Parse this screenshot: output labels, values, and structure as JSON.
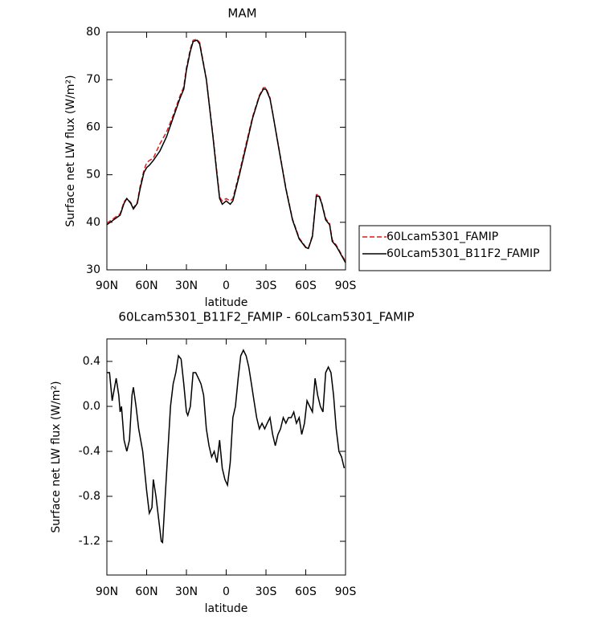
{
  "chart_data": [
    {
      "type": "line",
      "title": "MAM",
      "x_label": "latitude",
      "y_label": "Surface net LW flux (W/m²)",
      "x": [
        90,
        85,
        80,
        77,
        75,
        72,
        70,
        67,
        65,
        62,
        60,
        58,
        55,
        50,
        45,
        40,
        35,
        32,
        30,
        27,
        25,
        22,
        20,
        15,
        10,
        7,
        5,
        3,
        0,
        -3,
        -5,
        -10,
        -15,
        -20,
        -25,
        -28,
        -30,
        -33,
        -35,
        -40,
        -45,
        -50,
        -55,
        -60,
        -62,
        -65,
        -68,
        -70,
        -72,
        -75,
        -78,
        -80,
        -83,
        -85,
        -88,
        -90
      ],
      "series": [
        {
          "name": "60Lcam5301_FAMIP",
          "color": "#e41a1c",
          "line_style": "dashed",
          "values": [
            39.8,
            40.8,
            41.8,
            44.3,
            45,
            44.2,
            43,
            44.2,
            47.5,
            51,
            52.5,
            53,
            53.5,
            56.5,
            59,
            62.5,
            66.5,
            68.5,
            72.5,
            76.5,
            78.3,
            78.5,
            77.8,
            70.2,
            58.3,
            50.5,
            45.3,
            44.5,
            45,
            44.5,
            45,
            50.5,
            56.5,
            62.3,
            66.7,
            68.3,
            68.3,
            66.2,
            63,
            55.2,
            47.2,
            40.7,
            36.7,
            34.8,
            34.6,
            37.2,
            45.8,
            45.8,
            44.2,
            40.8,
            39.7,
            36.3,
            35.2,
            34.2,
            32.7,
            31.8
          ]
        },
        {
          "name": "60Lcam5301_B11F2_FAMIP",
          "color": "#000000",
          "line_style": "solid",
          "values": [
            39.5,
            40.5,
            41.5,
            44,
            45,
            44,
            42.8,
            44,
            47,
            50.5,
            51.5,
            52,
            53,
            55,
            58,
            62,
            66,
            68,
            72,
            76,
            78,
            78.3,
            77.5,
            70,
            58,
            50,
            45,
            43.8,
            44.5,
            43.8,
            44.5,
            50,
            56,
            62,
            66.5,
            68,
            68,
            66,
            63,
            55,
            47,
            40.5,
            36.5,
            34.7,
            34.5,
            37,
            45.5,
            45.5,
            44,
            40.5,
            39.5,
            36,
            35,
            34,
            32.5,
            31.5
          ]
        }
      ],
      "xlim": [
        90,
        -90
      ],
      "xticks": [
        {
          "value": 90,
          "label": "90N"
        },
        {
          "value": 60,
          "label": "60N"
        },
        {
          "value": 30,
          "label": "30N"
        },
        0,
        {
          "value": -30,
          "label": "30S"
        },
        {
          "value": -60,
          "label": "60S"
        },
        {
          "value": -90,
          "label": "90S"
        }
      ],
      "ylim": [
        30,
        80
      ],
      "yticks": [
        30,
        40,
        50,
        60,
        70,
        80
      ],
      "legend": "right"
    },
    {
      "type": "line",
      "title": "60Lcam5301_B11F2_FAMIP - 60Lcam5301_FAMIP",
      "x_label": "latitude",
      "y_label": "Surface net LW flux (W/m²)",
      "x": [
        90,
        88,
        86,
        83,
        81,
        80,
        79,
        77,
        75,
        73,
        71,
        70,
        68,
        66,
        63,
        60,
        58,
        56,
        55,
        53,
        51,
        49,
        48,
        46,
        44,
        42,
        40,
        38,
        36,
        34,
        32,
        30,
        29,
        27,
        25,
        23,
        21,
        19,
        17,
        15,
        13,
        11,
        9,
        7,
        5,
        3,
        1,
        -1,
        -3,
        -5,
        -7,
        -9,
        -11,
        -13,
        -15,
        -17,
        -19,
        -21,
        -23,
        -25,
        -27,
        -29,
        -31,
        -33,
        -35,
        -37,
        -39,
        -41,
        -43,
        -45,
        -47,
        -49,
        -51,
        -53,
        -55,
        -57,
        -59,
        -61,
        -63,
        -65,
        -67,
        -69,
        -71,
        -73,
        -75,
        -77,
        -79,
        -81,
        -83,
        -85,
        -87,
        -89
      ],
      "series": [
        {
          "color": "#000000",
          "line_style": "solid",
          "values": [
            0.3,
            0.3,
            0.05,
            0.25,
            0.1,
            -0.05,
            0.0,
            -0.3,
            -0.4,
            -0.3,
            0.1,
            0.17,
            0.0,
            -0.2,
            -0.4,
            -0.75,
            -0.95,
            -0.9,
            -0.65,
            -0.8,
            -1.0,
            -1.2,
            -1.21,
            -0.8,
            -0.4,
            0.0,
            0.2,
            0.3,
            0.45,
            0.42,
            0.2,
            -0.05,
            -0.08,
            0.0,
            0.3,
            0.3,
            0.25,
            0.2,
            0.1,
            -0.2,
            -0.35,
            -0.45,
            -0.4,
            -0.5,
            -0.3,
            -0.55,
            -0.65,
            -0.7,
            -0.5,
            -0.1,
            0.0,
            0.25,
            0.45,
            0.5,
            0.45,
            0.35,
            0.2,
            0.05,
            -0.1,
            -0.2,
            -0.15,
            -0.2,
            -0.15,
            -0.1,
            -0.25,
            -0.35,
            -0.25,
            -0.2,
            -0.1,
            -0.15,
            -0.1,
            -0.1,
            -0.05,
            -0.15,
            -0.1,
            -0.25,
            -0.15,
            0.05,
            0.0,
            -0.05,
            0.25,
            0.1,
            0.0,
            -0.05,
            0.3,
            0.35,
            0.3,
            0.1,
            -0.2,
            -0.4,
            -0.45,
            -0.55
          ]
        }
      ],
      "xlim": [
        90,
        -90
      ],
      "xticks": [
        {
          "value": 90,
          "label": "90N"
        },
        {
          "value": 60,
          "label": "60N"
        },
        {
          "value": 30,
          "label": "30N"
        },
        0,
        {
          "value": -30,
          "label": "30S"
        },
        {
          "value": -60,
          "label": "60S"
        },
        {
          "value": -90,
          "label": "90S"
        }
      ],
      "ylim": [
        -1.5,
        0.6
      ],
      "yticks": [
        -1.2,
        -0.8,
        -0.4,
        {
          "value": 0,
          "label": "0.0"
        },
        0.4
      ]
    }
  ]
}
